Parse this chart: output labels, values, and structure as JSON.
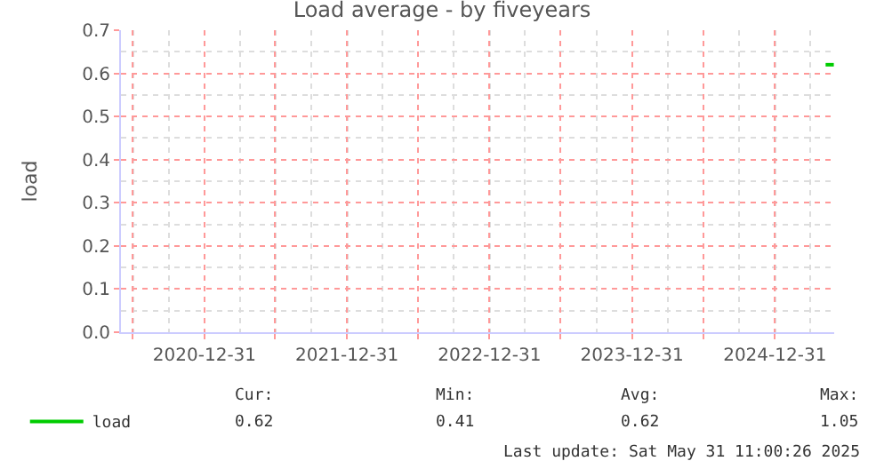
{
  "chart_data": {
    "type": "line",
    "title": "Load average - by fiveyears",
    "ylabel": "load",
    "x": [
      "2025-05-10",
      "2025-05-31"
    ],
    "series": [
      {
        "name": "load",
        "color": "#00cc00",
        "values": [
          0.62,
          0.62
        ]
      }
    ],
    "xlim": [
      "2020-05-31",
      "2025-06-01"
    ],
    "xticks": [
      {
        "value": "2020-06-30",
        "label": null
      },
      {
        "value": "2020-12-31",
        "label": "2020-12-31"
      },
      {
        "value": "2021-06-30",
        "label": null
      },
      {
        "value": "2021-12-31",
        "label": "2021-12-31"
      },
      {
        "value": "2022-06-30",
        "label": null
      },
      {
        "value": "2022-12-31",
        "label": "2022-12-31"
      },
      {
        "value": "2023-06-30",
        "label": null
      },
      {
        "value": "2023-12-31",
        "label": "2023-12-31"
      },
      {
        "value": "2024-06-30",
        "label": null
      },
      {
        "value": "2024-12-31",
        "label": "2024-12-31"
      }
    ],
    "ylim": [
      0,
      0.7
    ],
    "yticks": [
      {
        "value": 0,
        "label": "0.0"
      },
      0.1,
      0.2,
      0.3,
      0.4,
      0.5,
      0.6,
      0.7
    ],
    "grid": true,
    "legend": "bottom left",
    "marker": "none",
    "line_style": "solid",
    "annotations": [
      "Cur:",
      "0.62",
      "Min:",
      "0.41",
      "Avg:",
      "0.62",
      "Max:",
      "1.05",
      "Last update: Sat May 31 11:00:26 2025"
    ]
  }
}
